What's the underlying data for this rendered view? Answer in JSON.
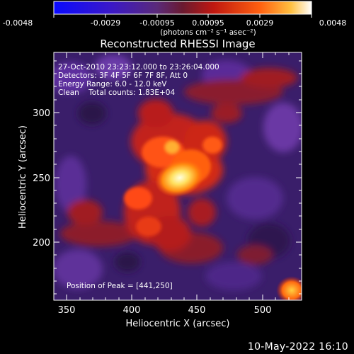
{
  "colorbar": {
    "ticks": [
      "-0.0048",
      "-0.0029",
      "-0.00095",
      "0.00095",
      "0.0029",
      "0.0048"
    ],
    "units": "(photons cm⁻² s⁻¹ asec⁻²)"
  },
  "title": "Reconstructed RHESSI Image",
  "info_lines": [
    "27-Oct-2010 23:23:12.000 to 23:26:04.000",
    "Detectors: 3F 4F 5F 6F 7F 8F, Att 0",
    "Energy Range: 6.0 - 12.0 keV",
    "Clean    Total counts: 1.83E+04"
  ],
  "peak_label": "Position of Peak = [441,250]",
  "x_axis": {
    "label": "Heliocentric X (arcsec)",
    "ticks": [
      "350",
      "400",
      "450",
      "500"
    ],
    "range": [
      337,
      530
    ]
  },
  "y_axis": {
    "label": "Heliocentric Y (arcsec)",
    "ticks": [
      "200",
      "250",
      "300"
    ],
    "range": [
      155,
      348
    ]
  },
  "footer": "10-May-2022 16:10",
  "colors": {
    "low": "#1010ff",
    "mid_low": "#6a3fa8",
    "mid": "#c2221a",
    "high": "#ff7a10",
    "peak": "#ffffc8"
  }
}
